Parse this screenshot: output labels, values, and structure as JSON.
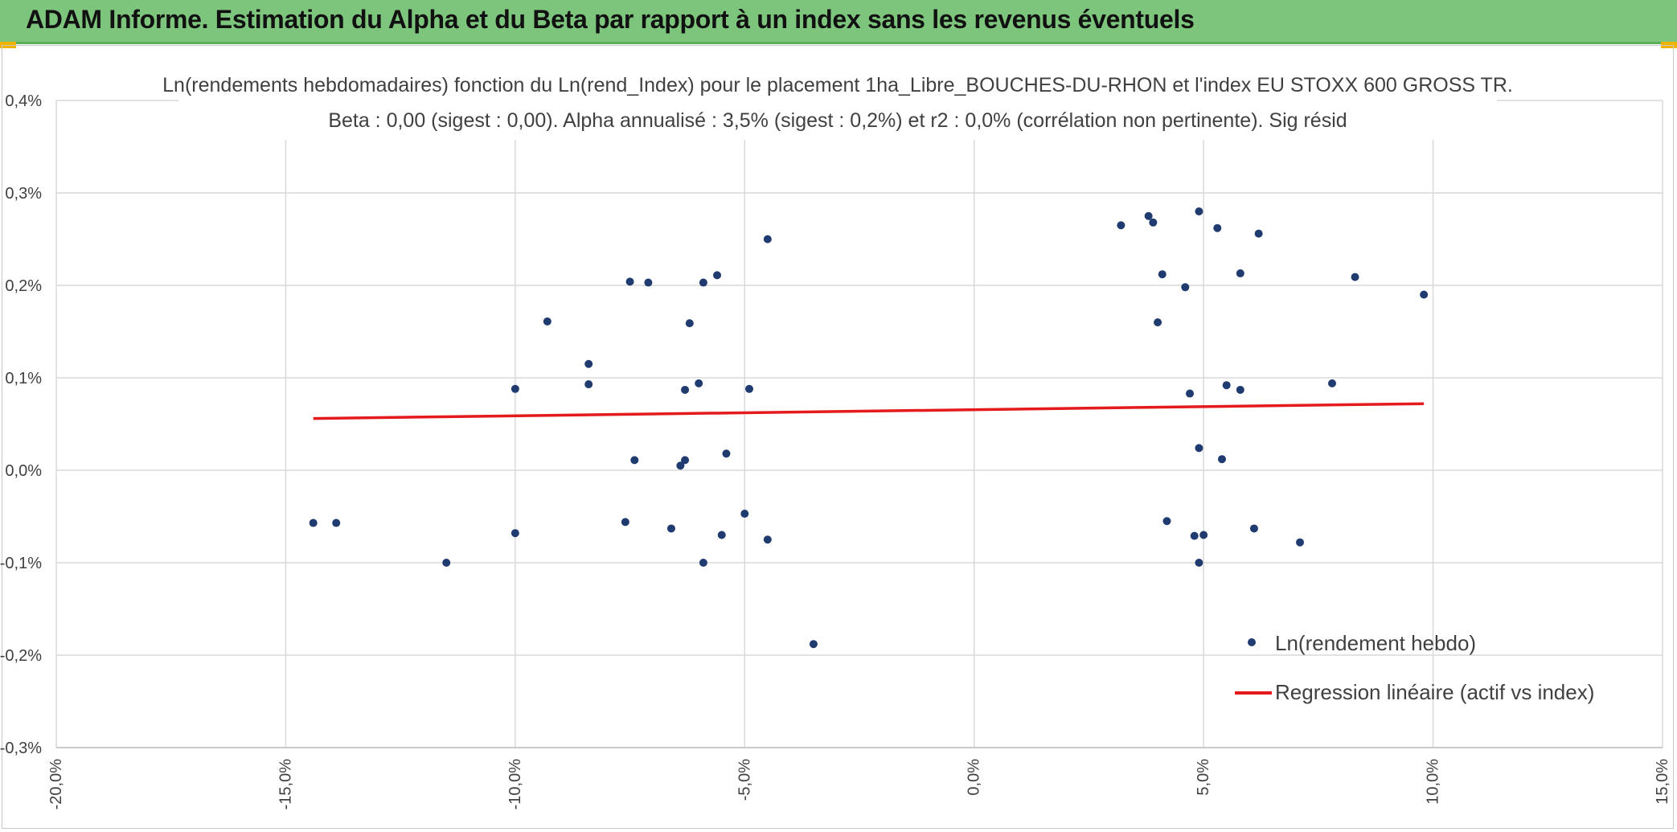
{
  "header": {
    "title": "ADAM Informe. Estimation du Alpha et du Beta par rapport à un index sans les revenus éventuels"
  },
  "chart_data": {
    "type": "scatter",
    "title": "Ln(rendements hebdomadaires) fonction du Ln(rend_Index) pour le placement 1ha_Libre_BOUCHES-DU-RHON et l'index EU STOXX 600 GROSS TR.",
    "subtitle": "Beta : 0,00 (sigest : 0,00). Alpha annualisé : 3,5% (sigest : 0,2%) et r2 : 0,0% (corrélation non pertinente). Sig résid",
    "xlabel": "",
    "ylabel": "",
    "xlim": [
      -20,
      15
    ],
    "ylim": [
      -0.3,
      0.4
    ],
    "x_ticks": [
      "-20,0%",
      "-15,0%",
      "-10,0%",
      "-5,0%",
      "0,0%",
      "5,0%",
      "10,0%",
      "15,0%"
    ],
    "y_ticks": [
      "-0,3%",
      "-0,2%",
      "-0,1%",
      "0,0%",
      "0,1%",
      "0,2%",
      "0,3%",
      "0,4%"
    ],
    "grid": true,
    "legend_position": "bottom-right",
    "colors": {
      "points": "#1f3b70",
      "regression": "#e41a1c"
    },
    "series": [
      {
        "name": "Ln(rendement hebdo)",
        "type": "scatter",
        "points": [
          [
            -14.4,
            -0.057
          ],
          [
            -13.9,
            -0.057
          ],
          [
            -11.5,
            -0.1
          ],
          [
            -10.0,
            0.088
          ],
          [
            -10.0,
            -0.068
          ],
          [
            -9.3,
            0.161
          ],
          [
            -8.4,
            0.115
          ],
          [
            -8.4,
            0.093
          ],
          [
            -7.5,
            0.204
          ],
          [
            -7.1,
            0.203
          ],
          [
            -7.6,
            -0.056
          ],
          [
            -7.4,
            0.011
          ],
          [
            -6.6,
            -0.063
          ],
          [
            -6.3,
            0.087
          ],
          [
            -6.3,
            0.011
          ],
          [
            -6.2,
            0.159
          ],
          [
            -6.4,
            0.005
          ],
          [
            -6.0,
            0.094
          ],
          [
            -5.9,
            0.203
          ],
          [
            -5.9,
            -0.1
          ],
          [
            -5.6,
            0.211
          ],
          [
            -5.5,
            -0.07
          ],
          [
            -5.4,
            0.018
          ],
          [
            -4.5,
            0.25
          ],
          [
            -3.5,
            -0.188
          ],
          [
            7.8,
            0.094
          ],
          [
            8.3,
            0.209
          ],
          [
            9.8,
            0.19
          ],
          [
            7.1,
            -0.078
          ],
          [
            6.2,
            0.256
          ],
          [
            5.8,
            0.213
          ],
          [
            5.5,
            0.092
          ],
          [
            6.1,
            -0.063
          ],
          [
            5.4,
            0.012
          ],
          [
            5.3,
            0.262
          ],
          [
            4.9,
            0.28
          ],
          [
            4.9,
            0.024
          ],
          [
            4.9,
            -0.1
          ],
          [
            5.0,
            -0.07
          ],
          [
            4.8,
            -0.071
          ],
          [
            4.6,
            0.198
          ],
          [
            4.7,
            0.083
          ],
          [
            4.2,
            -0.055
          ],
          [
            5.8,
            0.087
          ],
          [
            3.8,
            0.275
          ],
          [
            3.9,
            0.268
          ],
          [
            4.1,
            0.212
          ],
          [
            4.0,
            0.16
          ],
          [
            3.2,
            0.265
          ],
          [
            -5.0,
            -0.047
          ],
          [
            -4.5,
            -0.075
          ],
          [
            -4.9,
            0.088
          ]
        ]
      },
      {
        "name": "Regression linéaire (actif vs index)",
        "type": "line",
        "points": [
          [
            -14.4,
            0.056
          ],
          [
            9.8,
            0.072
          ]
        ]
      }
    ]
  }
}
